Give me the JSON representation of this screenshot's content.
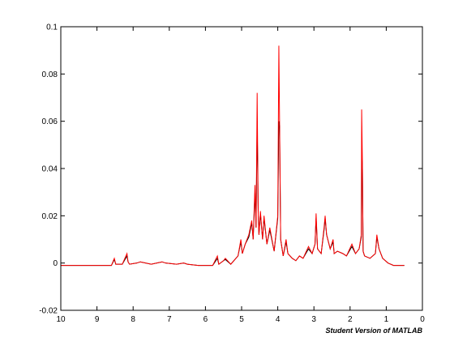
{
  "chart_data": {
    "type": "line",
    "x": [
      10,
      9.5,
      9,
      8.6,
      8.52,
      8.48,
      8.3,
      8.17,
      8.14,
      8.1,
      7.9,
      7.8,
      7.5,
      7.2,
      7.1,
      6.8,
      6.6,
      6.5,
      6.2,
      5.8,
      5.67,
      5.63,
      5.5,
      5.45,
      5.3,
      5.1,
      5.02,
      4.98,
      4.9,
      4.8,
      4.72,
      4.68,
      4.63,
      4.6,
      4.57,
      4.54,
      4.52,
      4.48,
      4.42,
      4.38,
      4.3,
      4.22,
      4.1,
      4.0,
      3.97,
      3.95,
      3.92,
      3.85,
      3.77,
      3.72,
      3.6,
      3.5,
      3.4,
      3.3,
      3.15,
      3.05,
      2.97,
      2.94,
      2.9,
      2.8,
      2.72,
      2.69,
      2.65,
      2.55,
      2.47,
      2.44,
      2.35,
      2.2,
      2.1,
      1.95,
      1.85,
      1.75,
      1.69,
      1.68,
      1.66,
      1.64,
      1.6,
      1.45,
      1.3,
      1.26,
      1.2,
      1.1,
      0.95,
      0.8,
      0.5
    ],
    "series": [
      {
        "color": "#000000",
        "values": [
          -0.001,
          -0.001,
          -0.001,
          -0.001,
          0.0015,
          -0.0005,
          -0.0005,
          0.003,
          0.0005,
          -0.0005,
          0,
          0.0005,
          -0.0005,
          0.0005,
          0,
          -0.0005,
          0,
          -0.0005,
          -0.001,
          -0.001,
          0.002,
          -0.0005,
          0.001,
          0.0015,
          -0.0005,
          0.003,
          0.009,
          0.004,
          0.008,
          0.011,
          0.017,
          0.01,
          0.03,
          0.015,
          0.06,
          0.02,
          0.012,
          0.021,
          0.01,
          0.019,
          0.008,
          0.014,
          0.005,
          0.019,
          0.06,
          0.058,
          0.01,
          0.003,
          0.009,
          0.004,
          0.002,
          0.001,
          0.003,
          0.002,
          0.006,
          0.004,
          0.008,
          0.019,
          0.006,
          0.004,
          0.014,
          0.019,
          0.012,
          0.006,
          0.009,
          0.004,
          0.005,
          0.004,
          0.003,
          0.007,
          0.004,
          0.006,
          0.011,
          0.045,
          0.042,
          0.005,
          0.003,
          0.002,
          0.004,
          0.011,
          0.006,
          0.002,
          0,
          -0.001,
          -0.001
        ]
      },
      {
        "color": "#ff0000",
        "values": [
          -0.001,
          -0.001,
          -0.001,
          -0.001,
          0.002,
          -0.0005,
          -0.0005,
          0.004,
          0.0005,
          -0.0005,
          0,
          0.0005,
          -0.0005,
          0.0005,
          0,
          -0.0005,
          0,
          -0.0005,
          -0.001,
          -0.001,
          0.003,
          -0.0005,
          0.001,
          0.002,
          -0.0005,
          0.003,
          0.01,
          0.004,
          0.008,
          0.012,
          0.018,
          0.01,
          0.033,
          0.015,
          0.072,
          0.02,
          0.012,
          0.022,
          0.01,
          0.02,
          0.008,
          0.015,
          0.005,
          0.02,
          0.092,
          0.06,
          0.01,
          0.003,
          0.01,
          0.004,
          0.002,
          0.001,
          0.003,
          0.002,
          0.007,
          0.004,
          0.008,
          0.021,
          0.006,
          0.004,
          0.015,
          0.02,
          0.012,
          0.006,
          0.01,
          0.004,
          0.005,
          0.004,
          0.003,
          0.008,
          0.004,
          0.006,
          0.012,
          0.065,
          0.043,
          0.005,
          0.003,
          0.002,
          0.004,
          0.012,
          0.006,
          0.002,
          0,
          -0.001,
          -0.001
        ]
      }
    ],
    "xlim": [
      10,
      0
    ],
    "xticks": [
      10,
      9,
      8,
      7,
      6,
      5,
      4,
      3,
      2,
      1,
      0
    ],
    "ylim": [
      -0.02,
      0.1
    ],
    "yticks": [
      -0.02,
      0,
      0.02,
      0.04,
      0.06,
      0.08,
      0.1
    ],
    "annotation": "Student Version of MATLAB"
  }
}
